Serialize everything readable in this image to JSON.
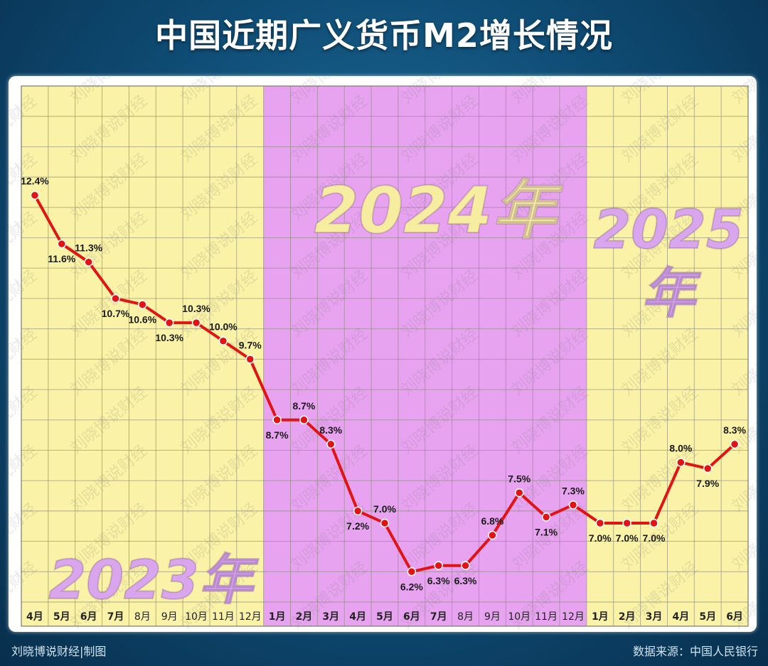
{
  "title": "中国近期广义货币M2增长情况",
  "footer": {
    "left": "刘晓博说财经|制图",
    "right": "数据来源：中国人民银行"
  },
  "watermark": "刘晓博说财经",
  "colors": {
    "year_2023_bg": "#faf2a6",
    "year_2024_bg": "#e8a3f0",
    "year_2025_bg": "#faf2a6",
    "line": "#e01414",
    "year_label_2023": "#d9a6ee",
    "year_label_2024": "#f7eda0",
    "year_label_2025": "#d9a6ee"
  },
  "chart_data": {
    "type": "line",
    "title": "中国近期广义货币M2增长情况",
    "categories": [
      "4月",
      "5月",
      "6月",
      "7月",
      "8月",
      "9月",
      "10月",
      "11月",
      "12月",
      "1月",
      "2月",
      "3月",
      "4月",
      "5月",
      "6月",
      "7月",
      "8月",
      "9月",
      "10月",
      "11月",
      "12月",
      "1月",
      "2月",
      "3月",
      "4月",
      "5月",
      "6月"
    ],
    "series": [
      {
        "values": [
          12.4,
          11.6,
          11.3,
          10.7,
          10.6,
          10.3,
          10.3,
          10.0,
          9.7,
          8.7,
          8.7,
          8.3,
          7.2,
          7.0,
          6.2,
          6.3,
          6.3,
          6.8,
          7.5,
          7.1,
          7.3,
          7.0,
          7.0,
          7.0,
          8.0,
          7.9,
          8.3
        ],
        "labels": [
          "12.4%",
          "11.6%",
          "11.3%",
          "10.7%",
          "10.6%",
          "10.3%",
          "10.3%",
          "10.0%",
          "9.7%",
          "8.7%",
          "8.7%",
          "8.3%",
          "7.2%",
          "7.0%",
          "6.2%",
          "6.3%",
          "6.3%",
          "6.8%",
          "7.5%",
          "7.1%",
          "7.3%",
          "7.0%",
          "7.0%",
          "7.0%",
          "8.0%",
          "7.9%",
          "8.3%"
        ]
      }
    ],
    "year_groups": [
      {
        "label": "2023年",
        "start": 0,
        "end": 8
      },
      {
        "label": "2024年",
        "start": 9,
        "end": 20
      },
      {
        "label": "2025年",
        "start": 21,
        "end": 26
      }
    ],
    "ylim": [
      5.7,
      14.2
    ],
    "grid": true,
    "xlabel": "",
    "ylabel": ""
  }
}
